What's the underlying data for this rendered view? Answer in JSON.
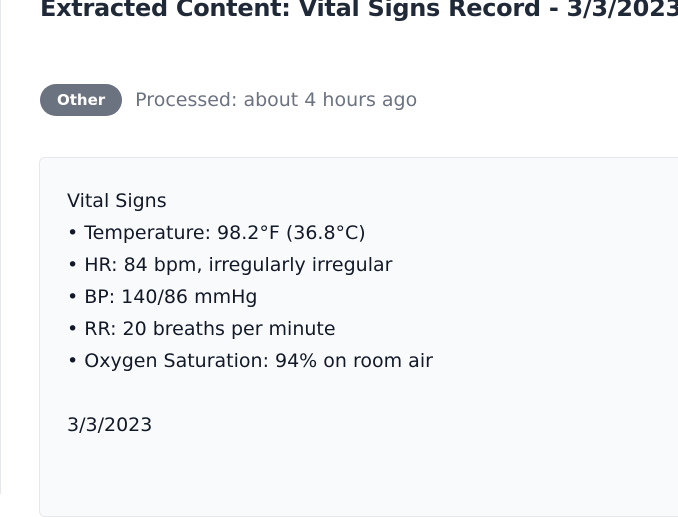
{
  "header": {
    "title": "Extracted Content: Vital Signs Record - 3/3/2023"
  },
  "meta": {
    "badge": "Other",
    "processed": "Processed: about 4 hours ago"
  },
  "content": {
    "heading": "Vital Signs",
    "items": [
      "• Temperature: 98.2°F (36.8°C)",
      "• HR: 84 bpm, irregularly irregular",
      "• BP: 140/86 mmHg",
      "• RR: 20 breaths per minute",
      "• Oxygen Saturation: 94% on room air"
    ],
    "date": "3/3/2023"
  }
}
